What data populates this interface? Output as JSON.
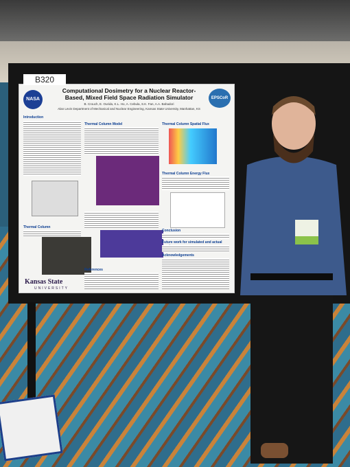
{
  "booth_sign": "B320",
  "poster": {
    "title": "Computational Dosimetry for a Nuclear Reactor-Based, Mixed Field Space Radiation Simulator",
    "authors": "B. Crouch, E. Ourida, K.L. Ho, A. Cebula, S.K. Fan, A.A. Bahadori",
    "affiliation": "Alan Levin Department of Mechanical and Nuclear Engineering, Kansas State University, Manhattan, KS",
    "logo_left": "NASA",
    "logo_right": "EPSCoR",
    "university": "Kansas State",
    "university_sub": "UNIVERSITY",
    "sections": [
      "Introduction",
      "Thermal Column Model",
      "Thermal Column Spatial Flux",
      "Thermal Column Energy Flux",
      "Thermal Column",
      "Conclusion",
      "Future work for simulated and actual reactor",
      "Acknowledgements",
      "References"
    ]
  }
}
